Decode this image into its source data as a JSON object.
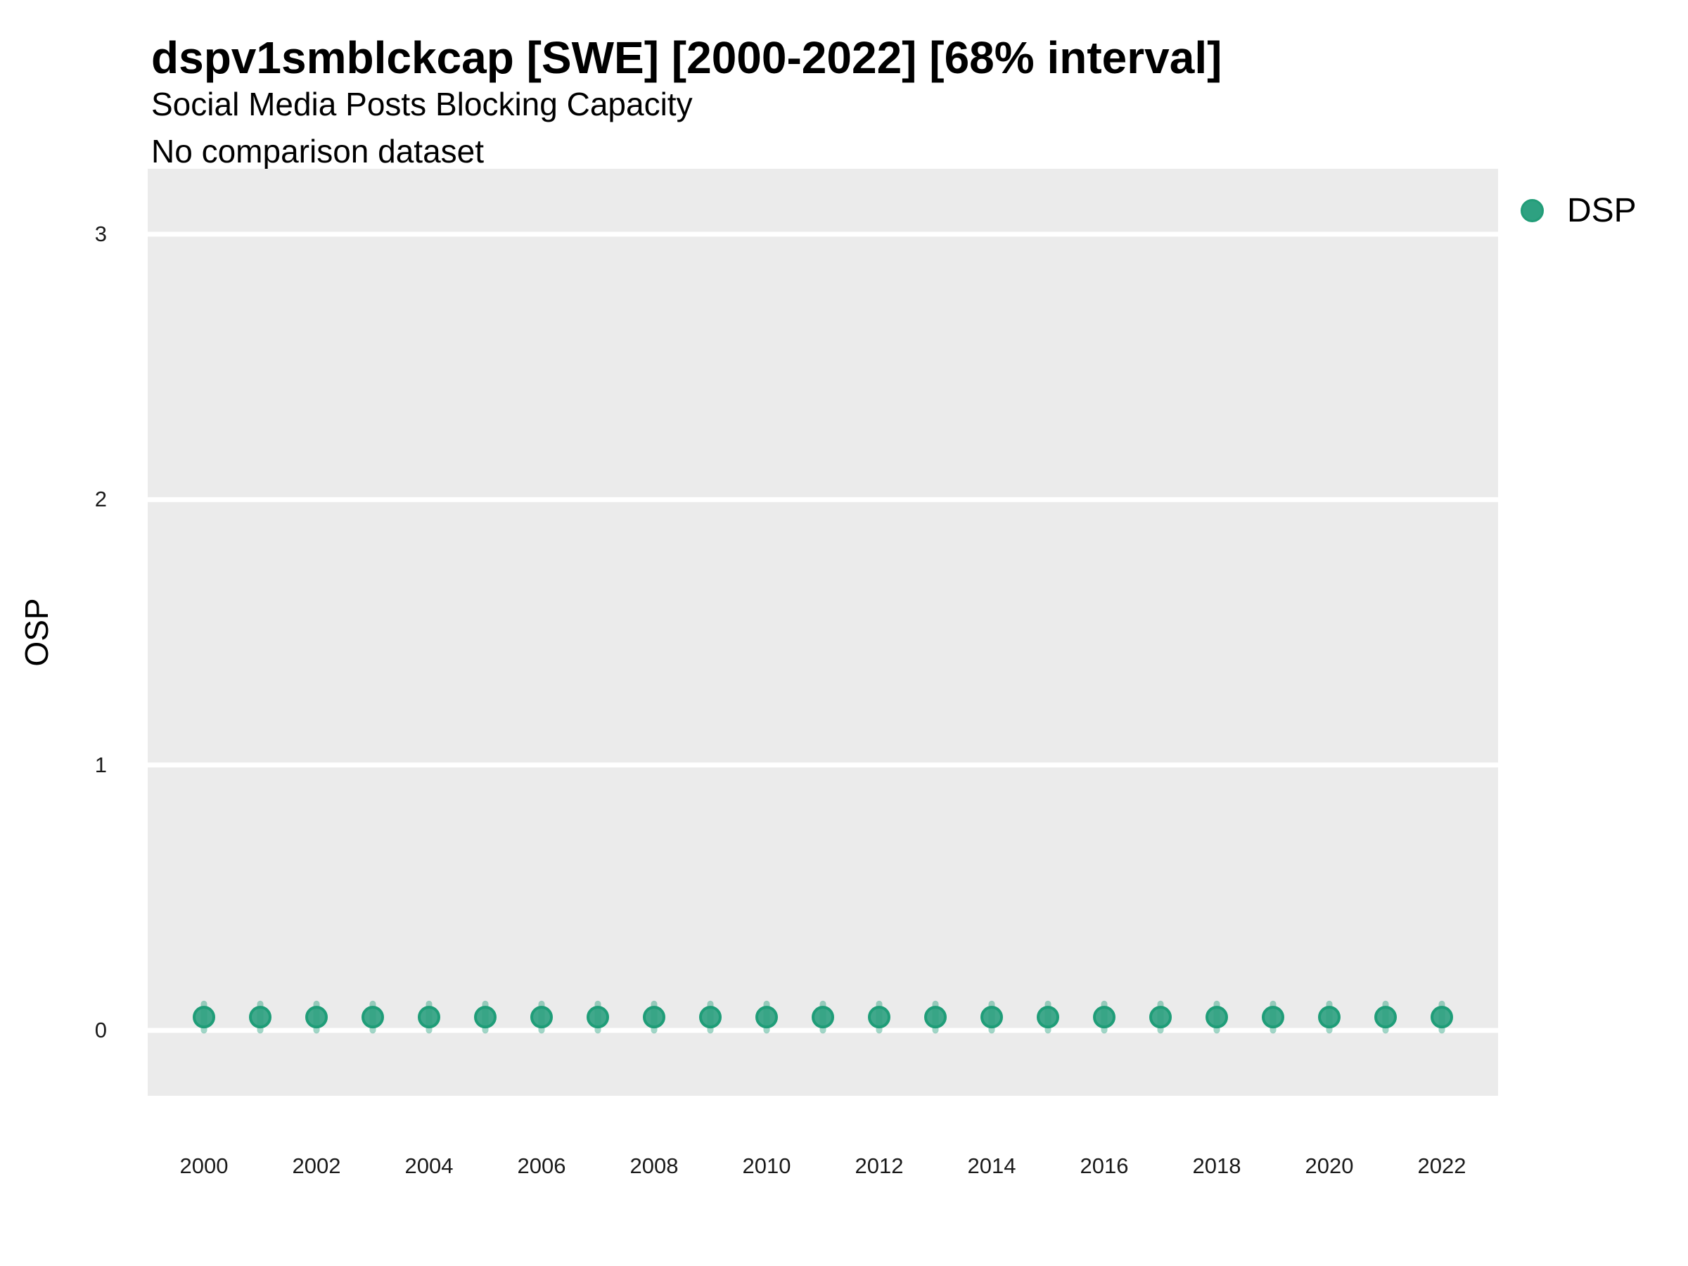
{
  "header": {
    "title": "dspv1smblckcap [SWE] [2000-2022] [68% interval]",
    "subtitle": "Social Media Posts Blocking Capacity",
    "note": "No comparison dataset"
  },
  "colors": {
    "panel_bg": "#ebebeb",
    "gridline": "#ffffff",
    "point_fill": "#2ea181",
    "point_stroke": "#1f9d78",
    "interval": "#1f9d78",
    "text": "#000000",
    "tick_text": "#1a1a1a"
  },
  "chart_data": {
    "type": "scatter",
    "title": "dspv1smblckcap [SWE] [2000-2022] [68% interval]",
    "subtitle": "Social Media Posts Blocking Capacity",
    "note": "No comparison dataset",
    "xlabel": "",
    "ylabel": "OSP",
    "interval_level": "68%",
    "grid": "horizontal-major-only",
    "legend_position": "right",
    "x": [
      2000,
      2001,
      2002,
      2003,
      2004,
      2005,
      2006,
      2007,
      2008,
      2009,
      2010,
      2011,
      2012,
      2013,
      2014,
      2015,
      2016,
      2017,
      2018,
      2019,
      2020,
      2021,
      2022
    ],
    "series": [
      {
        "name": "DSP",
        "values": [
          0.05,
          0.05,
          0.05,
          0.05,
          0.05,
          0.05,
          0.05,
          0.05,
          0.05,
          0.05,
          0.05,
          0.05,
          0.05,
          0.05,
          0.05,
          0.05,
          0.05,
          0.05,
          0.05,
          0.05,
          0.05,
          0.05,
          0.05
        ],
        "interval_low": [
          0.0,
          0.0,
          0.0,
          0.0,
          0.0,
          0.0,
          0.0,
          0.0,
          0.0,
          0.0,
          0.0,
          0.0,
          0.0,
          0.0,
          0.0,
          0.0,
          0.0,
          0.0,
          0.0,
          0.0,
          0.0,
          0.0,
          0.0
        ],
        "interval_high": [
          0.1,
          0.1,
          0.1,
          0.1,
          0.1,
          0.1,
          0.1,
          0.1,
          0.1,
          0.1,
          0.1,
          0.1,
          0.1,
          0.1,
          0.1,
          0.1,
          0.1,
          0.1,
          0.1,
          0.1,
          0.1,
          0.1,
          0.1
        ]
      }
    ],
    "x_ticks": [
      2000,
      2002,
      2004,
      2006,
      2008,
      2010,
      2012,
      2014,
      2016,
      2018,
      2020,
      2022
    ],
    "y_ticks": [
      0,
      1,
      2,
      3
    ],
    "ylim": [
      -0.26,
      3.25
    ]
  }
}
